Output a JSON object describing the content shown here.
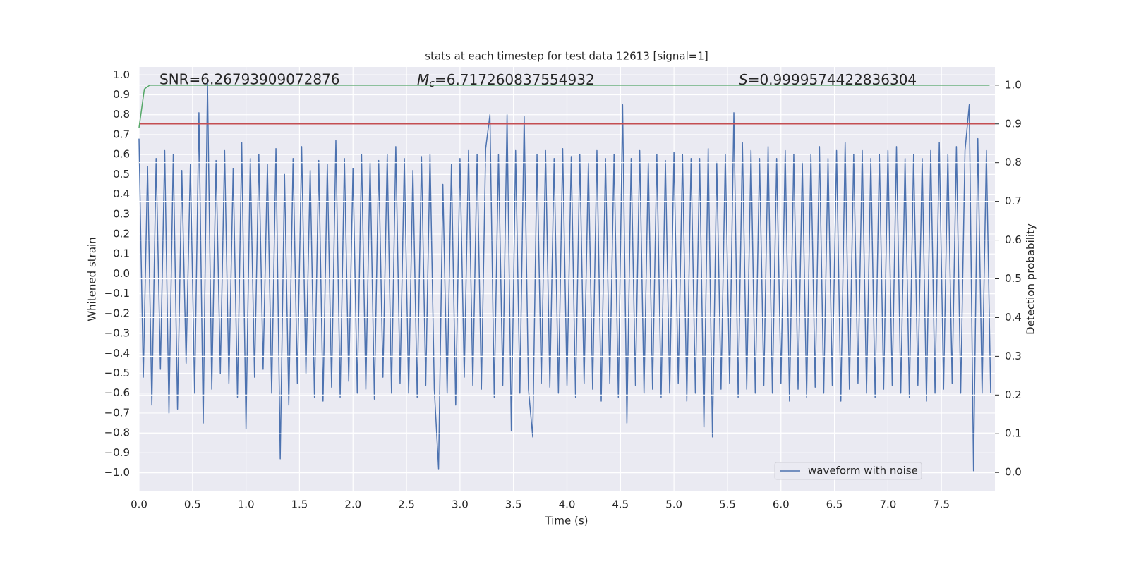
{
  "chart_data": {
    "type": "line",
    "title": "stats at each timestep for test data 12613 [signal=1]",
    "xlabel": "Time (s)",
    "ylabel": "Whitened strain",
    "y2label": "Detection probability",
    "annotations": [
      {
        "text": "SNR=6.26793909072876"
      },
      {
        "symbol": "M",
        "subscript": "c",
        "text": "=6.717260837554932"
      },
      {
        "symbol": "S",
        "text": "=0.9999574422836304"
      }
    ],
    "legend": "lower right",
    "grid": true,
    "xlim": [
      0,
      8
    ],
    "ylim": [
      -1.09,
      1.04
    ],
    "y2lim": [
      -0.047,
      1.047
    ],
    "xticks": [
      {
        "value": 0,
        "label": "0.0"
      },
      0.5,
      {
        "value": 1,
        "label": "1.0"
      },
      1.5,
      {
        "value": 2,
        "label": "2.0"
      },
      2.5,
      {
        "value": 3,
        "label": "3.0"
      },
      3.5,
      {
        "value": 4,
        "label": "4.0"
      },
      4.5,
      {
        "value": 5,
        "label": "5.0"
      },
      5.5,
      {
        "value": 6,
        "label": "6.0"
      },
      6.5,
      {
        "value": 7,
        "label": "7.0"
      },
      7.5
    ],
    "yticks": [
      {
        "value": 1,
        "label": "1.0"
      },
      0.9,
      0.8,
      0.7,
      0.6,
      0.5,
      0.4,
      0.3,
      0.2,
      0.1,
      {
        "value": 0,
        "label": "0.0"
      },
      {
        "value": -0.1,
        "label": "−0.1"
      },
      {
        "value": -0.2,
        "label": "−0.2"
      },
      {
        "value": -0.3,
        "label": "−0.3"
      },
      {
        "value": -0.4,
        "label": "−0.4"
      },
      {
        "value": -0.5,
        "label": "−0.5"
      },
      {
        "value": -0.6,
        "label": "−0.6"
      },
      {
        "value": -0.7,
        "label": "−0.7"
      },
      {
        "value": -0.8,
        "label": "−0.8"
      },
      {
        "value": -0.9,
        "label": "−0.9"
      },
      {
        "value": -1,
        "label": "−1.0"
      }
    ],
    "y2ticks": [
      {
        "value": 0,
        "label": "0.0"
      },
      0.1,
      0.2,
      0.3,
      0.4,
      0.5,
      0.6,
      0.7,
      0.8,
      0.9,
      {
        "value": 1,
        "label": "1.0"
      }
    ],
    "series": [
      {
        "name": "waveform with noise",
        "color": "#4c72b0",
        "x": [
          0,
          0.04,
          0.08,
          0.12,
          0.16,
          0.2,
          0.24,
          0.28,
          0.32,
          0.36,
          0.4,
          0.44,
          0.48,
          0.52,
          0.56,
          0.6,
          0.64,
          0.68,
          0.72,
          0.76,
          0.8,
          0.84,
          0.88,
          0.92,
          0.96,
          1,
          1.04,
          1.08,
          1.12,
          1.16,
          1.2,
          1.24,
          1.28,
          1.32,
          1.36,
          1.4,
          1.44,
          1.48,
          1.52,
          1.56,
          1.6,
          1.64,
          1.68,
          1.72,
          1.76,
          1.8,
          1.84,
          1.88,
          1.92,
          1.96,
          2,
          2.04,
          2.08,
          2.12,
          2.16,
          2.2,
          2.24,
          2.28,
          2.32,
          2.36,
          2.4,
          2.44,
          2.48,
          2.52,
          2.56,
          2.6,
          2.64,
          2.68,
          2.72,
          2.76,
          2.8,
          2.84,
          2.88,
          2.92,
          2.96,
          3,
          3.04,
          3.08,
          3.12,
          3.16,
          3.2,
          3.24,
          3.28,
          3.32,
          3.36,
          3.4,
          3.44,
          3.48,
          3.52,
          3.56,
          3.6,
          3.64,
          3.68,
          3.72,
          3.76,
          3.8,
          3.84,
          3.88,
          3.92,
          3.96,
          4,
          4.04,
          4.08,
          4.12,
          4.16,
          4.2,
          4.24,
          4.28,
          4.32,
          4.36,
          4.4,
          4.44,
          4.48,
          4.52,
          4.56,
          4.6,
          4.64,
          4.68,
          4.72,
          4.76,
          4.8,
          4.84,
          4.88,
          4.92,
          4.96,
          5,
          5.04,
          5.08,
          5.12,
          5.16,
          5.2,
          5.24,
          5.28,
          5.32,
          5.36,
          5.4,
          5.44,
          5.48,
          5.52,
          5.56,
          5.6,
          5.64,
          5.68,
          5.72,
          5.76,
          5.8,
          5.84,
          5.88,
          5.92,
          5.96,
          6,
          6.04,
          6.08,
          6.12,
          6.16,
          6.2,
          6.24,
          6.28,
          6.32,
          6.36,
          6.4,
          6.44,
          6.48,
          6.52,
          6.56,
          6.6,
          6.64,
          6.68,
          6.72,
          6.76,
          6.8,
          6.84,
          6.88,
          6.92,
          6.96,
          7,
          7.04,
          7.08,
          7.12,
          7.16,
          7.2,
          7.24,
          7.28,
          7.32,
          7.36,
          7.4,
          7.44,
          7.48,
          7.52,
          7.56,
          7.6,
          7.64,
          7.68,
          7.72,
          7.76,
          7.8,
          7.84,
          7.88,
          7.92,
          7.96
        ],
        "values": [
          0.68,
          -0.52,
          0.54,
          -0.66,
          0.58,
          -0.48,
          0.62,
          -0.7,
          0.6,
          -0.68,
          0.52,
          -0.45,
          0.55,
          -0.6,
          0.81,
          -0.75,
          0.96,
          -0.58,
          0.57,
          -0.5,
          0.62,
          -0.55,
          0.53,
          -0.62,
          0.66,
          -0.78,
          0.58,
          -0.52,
          0.6,
          -0.48,
          0.55,
          -0.6,
          0.63,
          -0.93,
          0.5,
          -0.66,
          0.58,
          -0.55,
          0.64,
          -0.5,
          0.52,
          -0.62,
          0.57,
          -0.64,
          0.55,
          -0.57,
          0.67,
          -0.62,
          0.58,
          -0.54,
          0.53,
          -0.6,
          0.6,
          -0.58,
          0.56,
          -0.63,
          0.57,
          -0.52,
          0.6,
          -0.6,
          0.64,
          -0.55,
          0.58,
          -0.6,
          0.52,
          -0.62,
          0.59,
          -0.56,
          0.6,
          -0.58,
          -0.98,
          0.45,
          -0.6,
          0.55,
          -0.66,
          0.58,
          -0.52,
          0.62,
          -0.56,
          0.6,
          -0.58,
          0.63,
          0.8,
          -0.62,
          0.6,
          -0.56,
          0.8,
          -0.79,
          0.62,
          -0.6,
          0.79,
          -0.58,
          -0.82,
          0.6,
          -0.55,
          0.62,
          -0.57,
          0.58,
          -0.6,
          0.63,
          -0.56,
          0.59,
          -0.62,
          0.6,
          -0.55,
          0.56,
          -0.58,
          0.62,
          -0.64,
          0.58,
          -0.55,
          0.6,
          -0.62,
          0.85,
          -0.75,
          0.58,
          -0.56,
          0.62,
          -0.6,
          0.56,
          -0.58,
          0.6,
          -0.62,
          0.57,
          -0.6,
          0.61,
          -0.55,
          0.6,
          -0.64,
          0.58,
          -0.6,
          0.58,
          -0.77,
          0.63,
          -0.82,
          0.56,
          -0.58,
          0.6,
          -0.55,
          0.81,
          -0.62,
          0.66,
          -0.58,
          0.62,
          -0.6,
          0.58,
          -0.56,
          0.64,
          -0.6,
          0.58,
          -0.55,
          0.62,
          -0.64,
          0.6,
          -0.58,
          0.56,
          -0.62,
          0.6,
          -0.57,
          0.64,
          -0.6,
          0.58,
          -0.56,
          0.62,
          -0.64,
          0.66,
          -0.58,
          0.6,
          -0.55,
          0.62,
          -0.6,
          0.58,
          -0.62,
          0.6,
          -0.58,
          0.62,
          -0.56,
          0.64,
          -0.6,
          0.58,
          -0.62,
          0.6,
          -0.56,
          0.58,
          -0.64,
          0.62,
          -0.6,
          0.66,
          -0.58,
          0.6,
          -0.55,
          0.64,
          -0.6,
          0.62,
          0.85,
          -0.99,
          0.68,
          -0.6,
          0.62,
          -0.6
        ]
      }
    ],
    "probability": {
      "color": "#55a868",
      "axis": "y2",
      "x": [
        0,
        0.05,
        0.1,
        7.95
      ],
      "values": [
        0.89,
        0.99,
        1.0,
        1.0
      ]
    },
    "threshold": {
      "color": "#c44e52",
      "axis": "y2",
      "value": 0.9
    }
  }
}
